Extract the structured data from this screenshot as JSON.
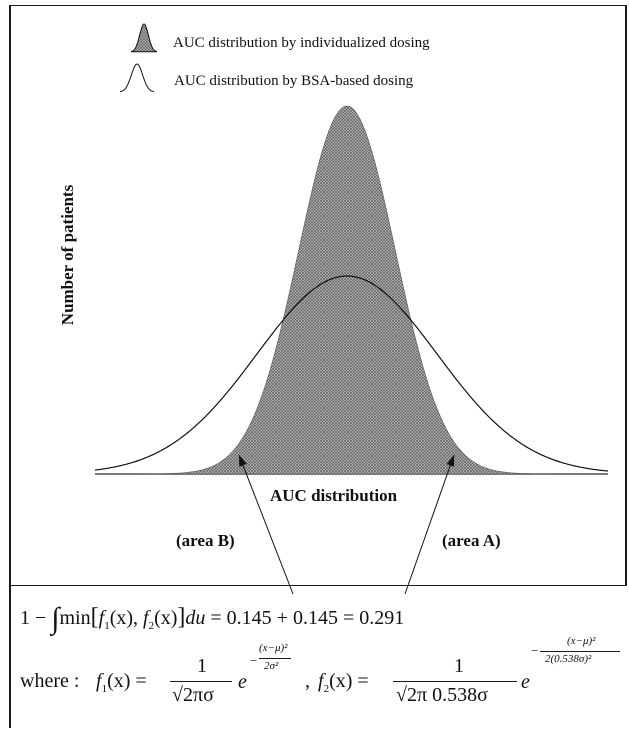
{
  "legend": {
    "items": [
      {
        "label": "AUC distribution by individualized dosing",
        "icon": "hatched-bell-icon"
      },
      {
        "label": "AUC distribution by BSA-based dosing",
        "icon": "outline-bell-icon"
      }
    ]
  },
  "axis": {
    "ylabel": "Number of patients",
    "xlabel": "AUC distribution"
  },
  "annotations": {
    "area_b": "(area B)",
    "area_a": "(area A)"
  },
  "formula": {
    "line1_prefix": "1 −",
    "integral": "∫",
    "line1_body": "min",
    "f1": "f",
    "f1_sub": "1",
    "f1_arg": "(x),",
    "f2": "f",
    "f2_sub": "2",
    "f2_arg": "(x)",
    "du": "du",
    "line1_result": "= 0.145 + 0.145 = 0.291",
    "where": "where :",
    "f1_def": "f",
    "f1_def_sub": "1",
    "f1_def_arg": "(x) =",
    "f1_num": "1",
    "f1_den": "√2πσ",
    "e": "e",
    "f1_exp_num": "(x−μ)²",
    "f1_exp_den": "2σ²",
    "sep": ",",
    "f2_def": "f",
    "f2_def_sub": "2",
    "f2_def_arg": "(x) =",
    "f2_num": "1",
    "f2_den": "√2π 0.538σ",
    "f2_exp_num": "(x−μ)²",
    "f2_exp_den": "2(0.538σ)²"
  },
  "chart_data": {
    "type": "area",
    "series": [
      {
        "name": "AUC distribution by individualized dosing",
        "sigma_ratio": 0.538,
        "style": "hatched-filled"
      },
      {
        "name": "AUC distribution by BSA-based dosing",
        "sigma_ratio": 1.0,
        "style": "outline"
      }
    ],
    "overlap_area": {
      "area_A": 0.145,
      "area_B": 0.145,
      "total": 0.291
    },
    "grid": false,
    "legend_position": "top-left",
    "colors": {
      "fill": "#8a8a8a",
      "line": "#111111"
    }
  }
}
